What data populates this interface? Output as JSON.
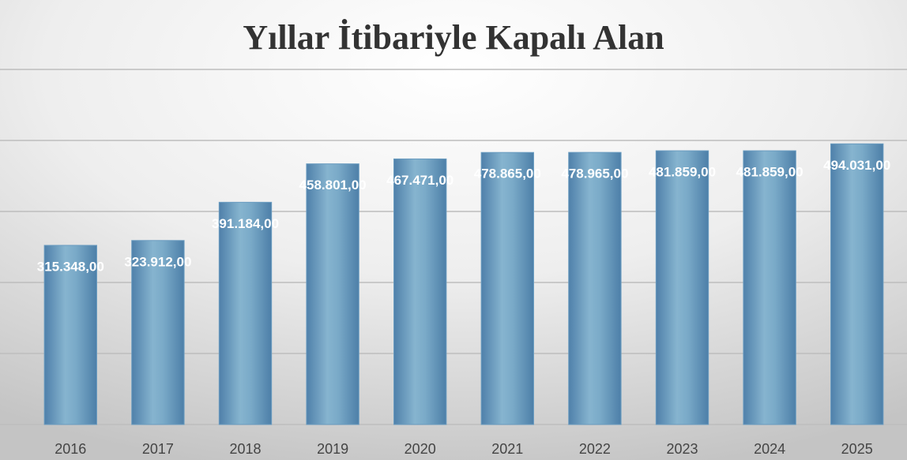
{
  "chart_data": {
    "type": "bar",
    "title": "Yıllar İtibariyle Kapalı Alan",
    "categories": [
      "2016",
      "2017",
      "2018",
      "2019",
      "2020",
      "2021",
      "2022",
      "2023",
      "2024",
      "2025"
    ],
    "values": [
      315348,
      323912,
      391184,
      458801,
      467471,
      478865,
      478965,
      481859,
      481859,
      494031
    ],
    "value_labels": [
      "315.348,00",
      "323.912,00",
      "391.184,00",
      "458.801,00",
      "467.471,00",
      "478.865,00",
      "478.965,00",
      "481.859,00",
      "481.859,00",
      "494.031,00"
    ],
    "color": "#6a9cc0",
    "ylim": [
      0,
      625000
    ],
    "yticks": [
      0,
      125000,
      250000,
      375000,
      500000,
      625000
    ],
    "grid": true
  }
}
